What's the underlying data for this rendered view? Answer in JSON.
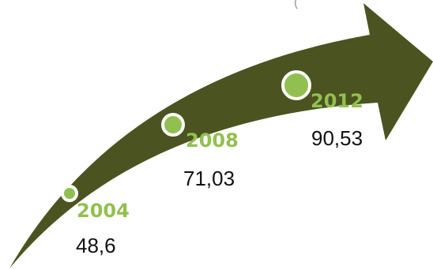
{
  "header_fragment": "(",
  "colors": {
    "arrow": "#4b5320",
    "marker_fill": "#92c050",
    "marker_ring": "#ffffff",
    "year_label": "#92c050"
  },
  "milestones": [
    {
      "year": "2004",
      "value": "48,6"
    },
    {
      "year": "2008",
      "value": "71,03"
    },
    {
      "year": "2012",
      "value": "90,53"
    }
  ]
}
